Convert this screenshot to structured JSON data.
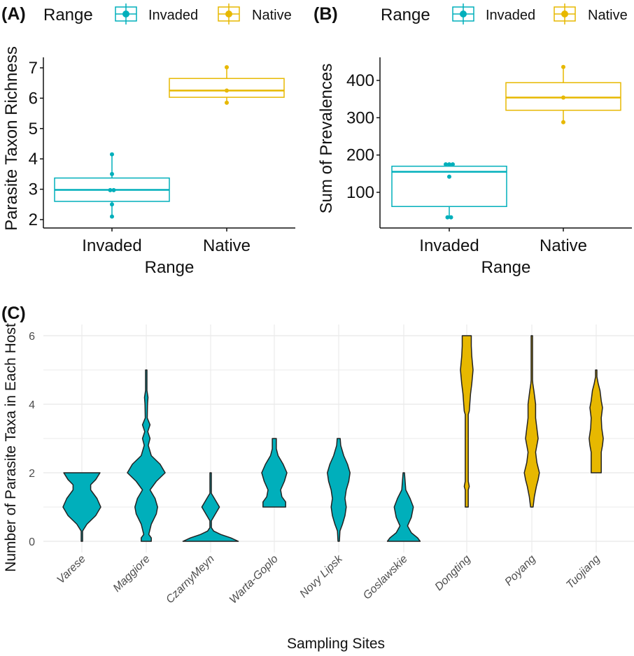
{
  "colors": {
    "invaded": "#00AFBB",
    "native": "#E7B800",
    "axis": "#111111",
    "grid": "#EBEBEB",
    "outline": "#222222"
  },
  "legend": {
    "title": "Range",
    "items": [
      {
        "label": "Invaded",
        "key": "invaded"
      },
      {
        "label": "Native",
        "key": "native"
      }
    ]
  },
  "chart_data": [
    {
      "id": "A",
      "panel_label": "(A)",
      "type": "box",
      "title": "",
      "xlabel": "Range",
      "ylabel": "Parasite Taxon Richness",
      "categories": [
        "Invaded",
        "Native"
      ],
      "ylim": [
        1.85,
        7.3
      ],
      "yticks": [
        2,
        3,
        4,
        5,
        6,
        7
      ],
      "legend_position": "top",
      "series": [
        {
          "name": "Invaded",
          "key": "invaded",
          "q1": 2.6,
          "median": 2.98,
          "q3": 3.37,
          "whisker_low": 2.1,
          "whisker_high": 4.15,
          "points": [
            2.1,
            2.5,
            2.97,
            2.97,
            3.5,
            4.15
          ]
        },
        {
          "name": "Native",
          "key": "native",
          "q1": 6.03,
          "median": 6.25,
          "q3": 6.65,
          "whisker_low": 5.85,
          "whisker_high": 7.02,
          "points": [
            5.85,
            6.25,
            7.02
          ]
        }
      ]
    },
    {
      "id": "B",
      "panel_label": "(B)",
      "type": "box",
      "title": "",
      "xlabel": "Range",
      "ylabel": "Sum of Prevalences",
      "categories": [
        "Invaded",
        "Native"
      ],
      "ylim": [
        15,
        460
      ],
      "yticks": [
        100,
        200,
        300,
        400
      ],
      "legend_position": "top",
      "series": [
        {
          "name": "Invaded",
          "key": "invaded",
          "q1": 62,
          "median": 155,
          "q3": 170,
          "whisker_low": 33,
          "whisker_high": 175,
          "points": [
            33,
            33,
            142,
            175,
            175,
            175
          ]
        },
        {
          "name": "Native",
          "key": "native",
          "q1": 320,
          "median": 354,
          "q3": 394,
          "whisker_low": 288,
          "whisker_high": 436,
          "points": [
            288,
            354,
            436
          ]
        }
      ]
    },
    {
      "id": "C",
      "panel_label": "(C)",
      "type": "violin",
      "title": "",
      "xlabel": "Sampling Sites",
      "ylabel": "Number of Parasite Taxa in Each Host",
      "ylim": [
        0,
        6
      ],
      "yticks": [
        0,
        2,
        4,
        6
      ],
      "grid": true,
      "categories": [
        "Varese",
        "Maggiore",
        "CzarnyMeyn",
        "Warta-Goplo",
        "Novy Lipsk",
        "Goslawskie",
        "Dongting",
        "Poyang",
        "Tuojiang"
      ],
      "groups": [
        "invaded",
        "invaded",
        "invaded",
        "invaded",
        "invaded",
        "invaded",
        "native",
        "native",
        "native"
      ],
      "violins": [
        {
          "site": "Varese",
          "range": [
            0,
            2
          ],
          "profile": [
            [
              0,
              0.01
            ],
            [
              0.3,
              0.02
            ],
            [
              0.5,
              0.2
            ],
            [
              0.75,
              0.55
            ],
            [
              1,
              0.75
            ],
            [
              1.25,
              0.6
            ],
            [
              1.5,
              0.35
            ],
            [
              1.65,
              0.35
            ],
            [
              1.8,
              0.55
            ],
            [
              2,
              0.72
            ]
          ]
        },
        {
          "site": "Maggiore",
          "range": [
            0,
            5
          ],
          "profile": [
            [
              0,
              0.2
            ],
            [
              0.1,
              0.2
            ],
            [
              0.2,
              0.1
            ],
            [
              0.5,
              0.2
            ],
            [
              0.8,
              0.4
            ],
            [
              1,
              0.45
            ],
            [
              1.25,
              0.35
            ],
            [
              1.5,
              0.15
            ],
            [
              1.75,
              0.4
            ],
            [
              2,
              0.75
            ],
            [
              2.25,
              0.55
            ],
            [
              2.5,
              0.2
            ],
            [
              2.8,
              0.08
            ],
            [
              3,
              0.15
            ],
            [
              3.2,
              0.06
            ],
            [
              3.4,
              0.15
            ],
            [
              3.6,
              0.04
            ],
            [
              4,
              0.05
            ],
            [
              4.2,
              0.07
            ],
            [
              4.4,
              0.02
            ],
            [
              4.6,
              0.01
            ],
            [
              5,
              0.01
            ]
          ]
        },
        {
          "site": "CzarnyMeyn",
          "range": [
            0,
            2
          ],
          "profile": [
            [
              0,
              1.1
            ],
            [
              0.1,
              0.8
            ],
            [
              0.2,
              0.4
            ],
            [
              0.3,
              0.12
            ],
            [
              0.4,
              0.03
            ],
            [
              0.6,
              0.03
            ],
            [
              0.75,
              0.15
            ],
            [
              1,
              0.35
            ],
            [
              1.25,
              0.15
            ],
            [
              1.4,
              0.02
            ],
            [
              2,
              0.01
            ]
          ]
        },
        {
          "site": "Warta-Goplo",
          "range": [
            1,
            3
          ],
          "profile": [
            [
              1,
              0.45
            ],
            [
              1.15,
              0.45
            ],
            [
              1.3,
              0.3
            ],
            [
              1.5,
              0.25
            ],
            [
              1.75,
              0.4
            ],
            [
              2,
              0.5
            ],
            [
              2.25,
              0.35
            ],
            [
              2.5,
              0.15
            ],
            [
              2.7,
              0.08
            ],
            [
              3,
              0.08
            ]
          ]
        },
        {
          "site": "Novy Lipsk",
          "range": [
            0,
            3
          ],
          "profile": [
            [
              0,
              0.02
            ],
            [
              0.3,
              0.05
            ],
            [
              0.5,
              0.15
            ],
            [
              0.75,
              0.25
            ],
            [
              1,
              0.3
            ],
            [
              1.25,
              0.25
            ],
            [
              1.5,
              0.3
            ],
            [
              1.75,
              0.4
            ],
            [
              2,
              0.45
            ],
            [
              2.25,
              0.35
            ],
            [
              2.5,
              0.2
            ],
            [
              2.8,
              0.08
            ],
            [
              3,
              0.06
            ]
          ]
        },
        {
          "site": "Goslawskie",
          "range": [
            0,
            2
          ],
          "profile": [
            [
              0,
              0.65
            ],
            [
              0.1,
              0.55
            ],
            [
              0.25,
              0.3
            ],
            [
              0.45,
              0.15
            ],
            [
              0.7,
              0.3
            ],
            [
              1,
              0.38
            ],
            [
              1.25,
              0.25
            ],
            [
              1.5,
              0.08
            ],
            [
              2,
              0.01
            ]
          ]
        },
        {
          "site": "Dongting",
          "range": [
            1,
            6
          ],
          "profile": [
            [
              1,
              0.06
            ],
            [
              1.5,
              0.06
            ],
            [
              1.6,
              0.1
            ],
            [
              1.75,
              0.06
            ],
            [
              2,
              0.06
            ],
            [
              3,
              0.06
            ],
            [
              3.7,
              0.06
            ],
            [
              3.8,
              0.1
            ],
            [
              4,
              0.12
            ],
            [
              4.3,
              0.15
            ],
            [
              4.6,
              0.2
            ],
            [
              5,
              0.25
            ],
            [
              5.4,
              0.2
            ],
            [
              5.7,
              0.18
            ],
            [
              6,
              0.18
            ]
          ]
        },
        {
          "site": "Poyang",
          "range": [
            1,
            6
          ],
          "profile": [
            [
              1,
              0.05
            ],
            [
              1.3,
              0.1
            ],
            [
              1.6,
              0.18
            ],
            [
              1.8,
              0.25
            ],
            [
              2,
              0.3
            ],
            [
              2.3,
              0.2
            ],
            [
              2.6,
              0.15
            ],
            [
              2.8,
              0.2
            ],
            [
              3,
              0.25
            ],
            [
              3.3,
              0.2
            ],
            [
              3.6,
              0.15
            ],
            [
              4,
              0.15
            ],
            [
              4.4,
              0.08
            ],
            [
              4.6,
              0.04
            ],
            [
              4.7,
              0.01
            ],
            [
              6,
              0.01
            ]
          ]
        },
        {
          "site": "Tuojiang",
          "range": [
            2,
            5
          ],
          "profile": [
            [
              2,
              0.2
            ],
            [
              2.6,
              0.2
            ],
            [
              2.8,
              0.25
            ],
            [
              3,
              0.28
            ],
            [
              3.3,
              0.22
            ],
            [
              3.6,
              0.2
            ],
            [
              3.9,
              0.25
            ],
            [
              4.1,
              0.2
            ],
            [
              4.4,
              0.15
            ],
            [
              4.6,
              0.08
            ],
            [
              4.8,
              0.02
            ],
            [
              5,
              0.01
            ]
          ]
        }
      ]
    }
  ]
}
